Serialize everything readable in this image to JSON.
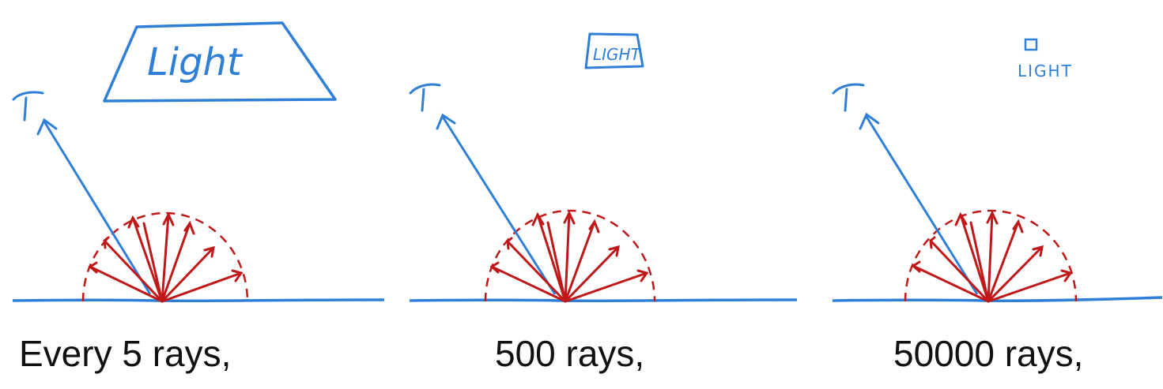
{
  "colors": {
    "surface": "#2f7fd6",
    "rays": "#c01818",
    "caption": "#111111"
  },
  "panels": [
    {
      "caption": "Every 5 rays,",
      "light_label": "Light",
      "light_size": "large"
    },
    {
      "caption": "500 rays,",
      "light_label": "LIGHT",
      "light_size": "small"
    },
    {
      "caption": "50000 rays,",
      "light_label": "LIGHT",
      "light_size": "tiny"
    }
  ],
  "icons": {
    "eye": "eye-icon",
    "light": "light-source-icon"
  }
}
